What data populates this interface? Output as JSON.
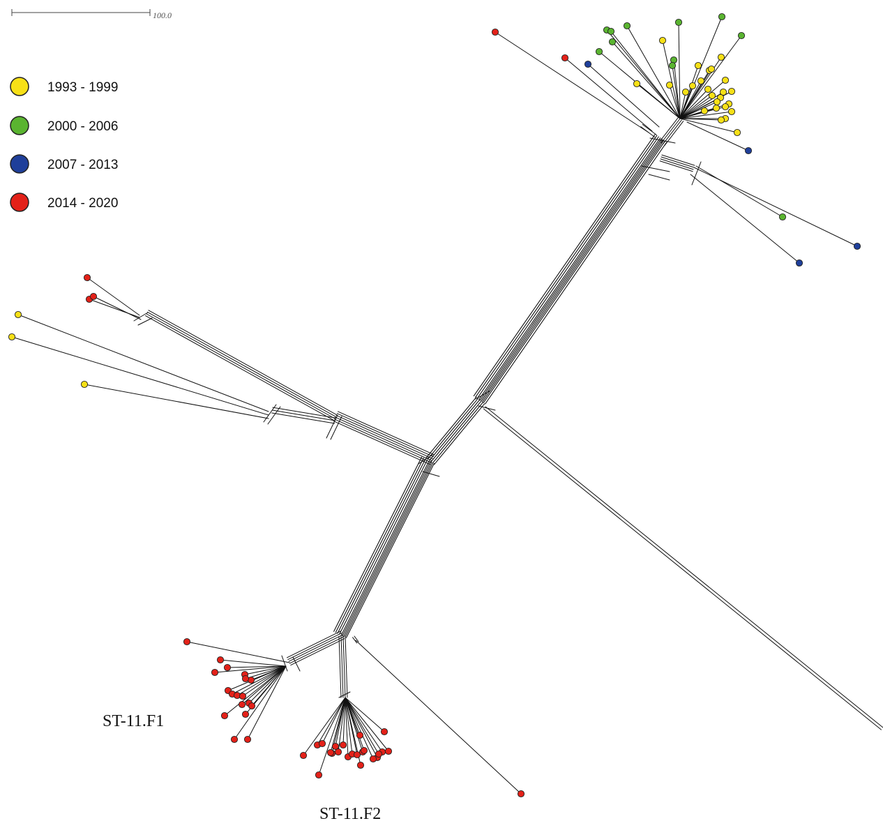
{
  "scale_bar": {
    "label": "100.0"
  },
  "legend": {
    "items": [
      {
        "label": "1993 - 1999",
        "color": "#f7e017"
      },
      {
        "label": "2000 - 2006",
        "color": "#5ab430"
      },
      {
        "label": "2007 - 2013",
        "color": "#1f3f9a"
      },
      {
        "label": "2014 - 2020",
        "color": "#e32119"
      }
    ]
  },
  "clade_labels": {
    "f1": "ST-11.F1",
    "f2": "ST-11.F2"
  },
  "colors": {
    "edge": "#111111",
    "node_stroke": "#222222"
  }
}
